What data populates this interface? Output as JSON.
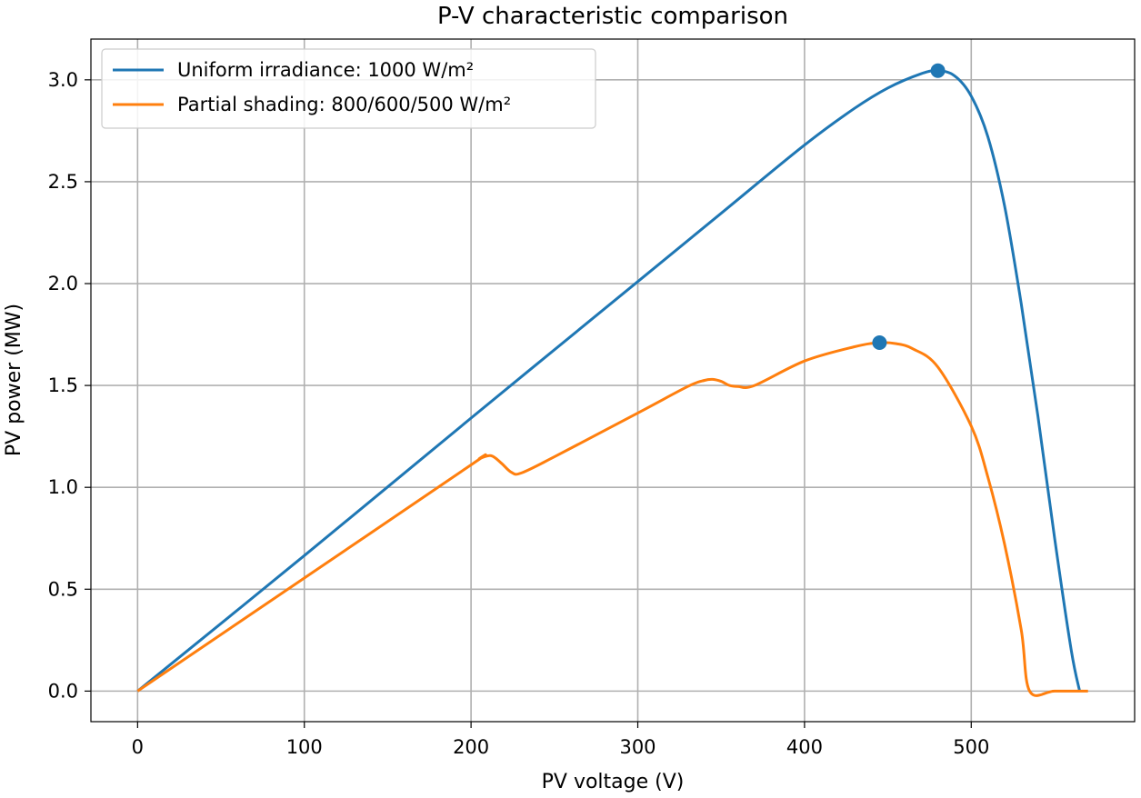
{
  "chart_data": {
    "type": "line",
    "title": "P-V characteristic comparison",
    "xlabel": "PV voltage (V)",
    "ylabel": "PV power (MW)",
    "xlim": [
      -28,
      598
    ],
    "ylim": [
      -0.15,
      3.2
    ],
    "xticks": [
      0,
      100,
      200,
      300,
      400,
      500
    ],
    "yticks": [
      0.0,
      0.5,
      1.0,
      1.5,
      2.0,
      2.5,
      3.0
    ],
    "xtick_labels": [
      "0",
      "100",
      "200",
      "300",
      "400",
      "500"
    ],
    "ytick_labels": [
      "0.0",
      "0.5",
      "1.0",
      "1.5",
      "2.0",
      "2.5",
      "3.0"
    ],
    "grid": true,
    "legend_position": "top-left",
    "series": [
      {
        "name": "Uniform irradiance: 1000 W/m²",
        "color": "#1f77b4",
        "x": [
          0,
          100,
          200,
          300,
          350,
          400,
          430,
          450,
          470,
          480,
          490,
          500,
          510,
          520,
          530,
          540,
          550,
          560,
          565
        ],
        "y": [
          0,
          0.665,
          1.34,
          2.01,
          2.345,
          2.68,
          2.86,
          2.96,
          3.03,
          3.045,
          3.02,
          2.92,
          2.72,
          2.38,
          1.9,
          1.35,
          0.75,
          0.2,
          0.0
        ],
        "peak": {
          "x": 480,
          "y": 3.045
        }
      },
      {
        "name": "Partial shading: 800/600/500 W/m²",
        "color": "#ff7f0e",
        "x": [
          0,
          100,
          200,
          205,
          212,
          218,
          224,
          230,
          250,
          300,
          330,
          340,
          345,
          350,
          355,
          360,
          370,
          400,
          430,
          445,
          455,
          465,
          480,
          500,
          510,
          520,
          530,
          535,
          550,
          570
        ],
        "y": [
          0,
          0.555,
          1.11,
          1.14,
          1.155,
          1.12,
          1.075,
          1.07,
          1.15,
          1.365,
          1.495,
          1.525,
          1.53,
          1.52,
          1.5,
          1.495,
          1.5,
          1.62,
          1.69,
          1.71,
          1.705,
          1.68,
          1.59,
          1.3,
          1.05,
          0.72,
          0.3,
          0.0,
          0.0,
          0.0
        ],
        "peak": {
          "x": 445,
          "y": 1.71
        }
      }
    ]
  }
}
